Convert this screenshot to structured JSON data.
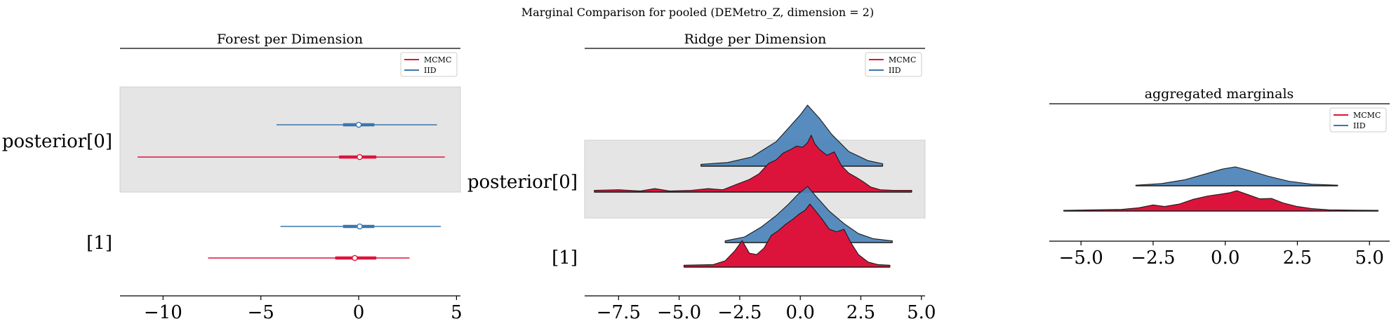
{
  "figure": {
    "suptitle": "Marginal Comparison for pooled (DEMetro_Z, dimension = 2)"
  },
  "colors": {
    "mcmc": "#dc143c",
    "iid": "#3a76ad",
    "iid_fill": "#4a82b8",
    "band": "#e5e5e5"
  },
  "chart_data": [
    {
      "type": "forest",
      "title": "Forest per Dimension",
      "xlabel": "",
      "xlim": [
        -12.2,
        5.2
      ],
      "xticks": [
        -10,
        -5,
        0,
        5
      ],
      "xtick_labels": [
        "−10",
        "−5",
        "0",
        "5"
      ],
      "rows": [
        "posterior[0]",
        "[1]"
      ],
      "legend": {
        "position": "top-right",
        "entries": [
          "MCMC",
          "IID"
        ]
      },
      "series": [
        {
          "name": "IID",
          "row": 0,
          "hdi94": [
            -4.2,
            4.0
          ],
          "iqr": [
            -0.8,
            0.8
          ],
          "median": 0.0
        },
        {
          "name": "MCMC",
          "row": 0,
          "hdi94": [
            -11.3,
            4.4
          ],
          "iqr": [
            -1.0,
            0.9
          ],
          "median": 0.05
        },
        {
          "name": "IID",
          "row": 1,
          "hdi94": [
            -4.0,
            4.2
          ],
          "iqr": [
            -0.8,
            0.8
          ],
          "median": 0.05
        },
        {
          "name": "MCMC",
          "row": 1,
          "hdi94": [
            -7.7,
            2.6
          ],
          "iqr": [
            -1.2,
            0.9
          ],
          "median": -0.2
        }
      ]
    },
    {
      "type": "ridgeline",
      "title": "Ridge per Dimension",
      "xlabel": "",
      "xlim": [
        -8.9,
        5.15
      ],
      "xticks": [
        -7.5,
        -5.0,
        -2.5,
        0.0,
        2.5,
        5.0
      ],
      "xtick_labels": [
        "−7.5",
        "−5.0",
        "−2.5",
        "0.0",
        "2.5",
        "5.0"
      ],
      "rows": [
        "posterior[0]",
        "[1]"
      ],
      "legend": {
        "position": "top-right",
        "entries": [
          "MCMC",
          "IID"
        ]
      },
      "series": [
        {
          "name": "IID",
          "row": 0,
          "range": [
            -4.1,
            3.4
          ],
          "density": [
            [
              -4.1,
              0.03
            ],
            [
              -3.0,
              0.06
            ],
            [
              -2.0,
              0.15
            ],
            [
              -1.0,
              0.4
            ],
            [
              -0.5,
              0.62
            ],
            [
              0.0,
              0.84
            ],
            [
              0.3,
              1.0
            ],
            [
              0.8,
              0.78
            ],
            [
              1.3,
              0.52
            ],
            [
              2.0,
              0.24
            ],
            [
              2.8,
              0.09
            ],
            [
              3.4,
              0.04
            ]
          ]
        },
        {
          "name": "MCMC",
          "row": 0,
          "range": [
            -8.5,
            4.6
          ],
          "density": [
            [
              -8.5,
              0.03
            ],
            [
              -7.5,
              0.04
            ],
            [
              -6.6,
              0.02
            ],
            [
              -6.0,
              0.06
            ],
            [
              -5.4,
              0.02
            ],
            [
              -4.5,
              0.03
            ],
            [
              -3.8,
              0.06
            ],
            [
              -3.2,
              0.04
            ],
            [
              -2.6,
              0.14
            ],
            [
              -2.1,
              0.22
            ],
            [
              -1.7,
              0.32
            ],
            [
              -1.3,
              0.5
            ],
            [
              -1.0,
              0.56
            ],
            [
              -0.7,
              0.68
            ],
            [
              -0.4,
              0.74
            ],
            [
              -0.15,
              0.8
            ],
            [
              0.1,
              0.78
            ],
            [
              0.3,
              0.86
            ],
            [
              0.45,
              0.99
            ],
            [
              0.6,
              0.84
            ],
            [
              0.8,
              0.74
            ],
            [
              1.1,
              0.64
            ],
            [
              1.4,
              0.7
            ],
            [
              1.7,
              0.46
            ],
            [
              2.0,
              0.33
            ],
            [
              2.3,
              0.26
            ],
            [
              2.6,
              0.18
            ],
            [
              2.9,
              0.09
            ],
            [
              3.3,
              0.04
            ],
            [
              3.8,
              0.03
            ],
            [
              4.6,
              0.03
            ]
          ]
        },
        {
          "name": "IID",
          "row": 1,
          "range": [
            -3.1,
            3.8
          ],
          "density": [
            [
              -3.1,
              0.03
            ],
            [
              -2.3,
              0.1
            ],
            [
              -1.6,
              0.28
            ],
            [
              -1.0,
              0.48
            ],
            [
              -0.5,
              0.68
            ],
            [
              -0.1,
              0.86
            ],
            [
              0.3,
              1.0
            ],
            [
              0.7,
              0.8
            ],
            [
              1.2,
              0.56
            ],
            [
              1.8,
              0.34
            ],
            [
              2.4,
              0.16
            ],
            [
              3.0,
              0.07
            ],
            [
              3.8,
              0.03
            ]
          ]
        },
        {
          "name": "MCMC",
          "row": 1,
          "range": [
            -4.8,
            3.7
          ],
          "density": [
            [
              -4.8,
              0.03
            ],
            [
              -3.6,
              0.04
            ],
            [
              -3.1,
              0.1
            ],
            [
              -2.7,
              0.26
            ],
            [
              -2.4,
              0.42
            ],
            [
              -2.1,
              0.22
            ],
            [
              -1.8,
              0.2
            ],
            [
              -1.5,
              0.3
            ],
            [
              -1.2,
              0.5
            ],
            [
              -0.9,
              0.58
            ],
            [
              -0.6,
              0.68
            ],
            [
              -0.3,
              0.76
            ],
            [
              -0.05,
              0.84
            ],
            [
              0.2,
              0.9
            ],
            [
              0.4,
              1.0
            ],
            [
              0.65,
              0.88
            ],
            [
              0.9,
              0.76
            ],
            [
              1.2,
              0.6
            ],
            [
              1.5,
              0.56
            ],
            [
              1.8,
              0.6
            ],
            [
              2.1,
              0.38
            ],
            [
              2.4,
              0.2
            ],
            [
              2.8,
              0.08
            ],
            [
              3.2,
              0.04
            ],
            [
              3.7,
              0.03
            ]
          ]
        }
      ]
    },
    {
      "type": "ridgeline",
      "title": "aggregated marginals",
      "xlabel": "",
      "xlim": [
        -6.1,
        5.7
      ],
      "xticks": [
        -5.0,
        -2.5,
        0.0,
        2.5,
        5.0
      ],
      "xtick_labels": [
        "−5.0",
        "−2.5",
        "0.0",
        "2.5",
        "5.0"
      ],
      "rows": [],
      "legend": {
        "position": "top-right",
        "entries": [
          "MCMC",
          "IID"
        ]
      },
      "series": [
        {
          "name": "IID",
          "row": 0,
          "range": [
            -3.1,
            3.9
          ],
          "density": [
            [
              -3.1,
              0.03
            ],
            [
              -2.2,
              0.12
            ],
            [
              -1.4,
              0.32
            ],
            [
              -0.7,
              0.62
            ],
            [
              -0.1,
              0.88
            ],
            [
              0.35,
              1.0
            ],
            [
              0.8,
              0.82
            ],
            [
              1.5,
              0.5
            ],
            [
              2.2,
              0.24
            ],
            [
              3.0,
              0.08
            ],
            [
              3.9,
              0.03
            ]
          ]
        },
        {
          "name": "MCMC",
          "row": 1,
          "range": [
            -5.6,
            5.3
          ],
          "density": [
            [
              -5.6,
              0.03
            ],
            [
              -4.5,
              0.06
            ],
            [
              -3.6,
              0.08
            ],
            [
              -3.0,
              0.16
            ],
            [
              -2.5,
              0.3
            ],
            [
              -2.1,
              0.22
            ],
            [
              -1.6,
              0.34
            ],
            [
              -1.1,
              0.58
            ],
            [
              -0.6,
              0.74
            ],
            [
              -0.2,
              0.82
            ],
            [
              0.15,
              0.9
            ],
            [
              0.4,
              1.0
            ],
            [
              0.8,
              0.8
            ],
            [
              1.2,
              0.6
            ],
            [
              1.6,
              0.62
            ],
            [
              2.0,
              0.4
            ],
            [
              2.5,
              0.22
            ],
            [
              3.0,
              0.12
            ],
            [
              3.6,
              0.06
            ],
            [
              4.5,
              0.04
            ],
            [
              5.3,
              0.03
            ]
          ]
        }
      ]
    }
  ]
}
